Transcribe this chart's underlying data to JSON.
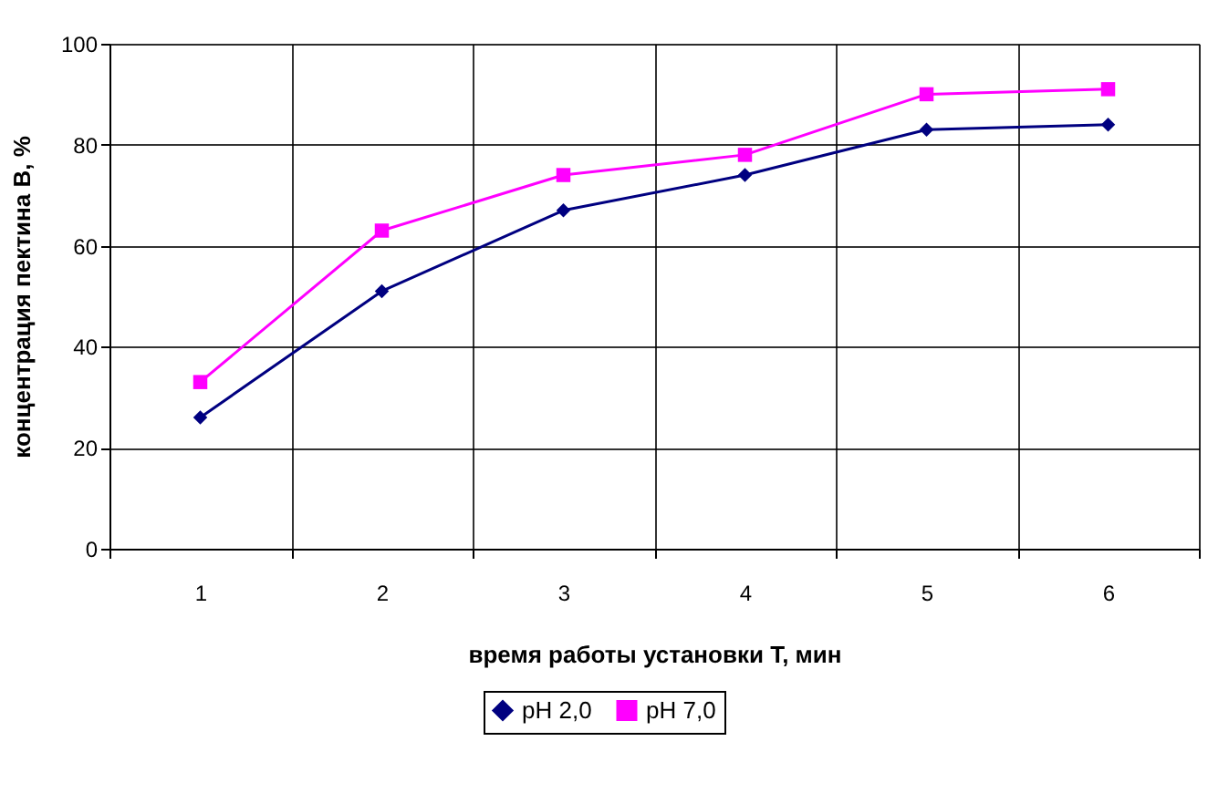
{
  "chart_data": {
    "type": "line",
    "xlabel": "время работы установки T, мин",
    "ylabel": "концентрация пектина B, %",
    "categories": [
      "1",
      "2",
      "3",
      "4",
      "5",
      "6"
    ],
    "series": [
      {
        "name": "pH 2,0",
        "color": "#000080",
        "marker": "diamond",
        "values": [
          26,
          51,
          67,
          74,
          83,
          84
        ]
      },
      {
        "name": "pH 7,0",
        "color": "#ff00ff",
        "marker": "square",
        "values": [
          33,
          63,
          74,
          78,
          90,
          91
        ]
      }
    ],
    "ylim": [
      0,
      100
    ],
    "yticks": [
      0,
      20,
      40,
      60,
      80,
      100
    ],
    "grid": true,
    "legend": "bottom",
    "line_style": "solid"
  }
}
